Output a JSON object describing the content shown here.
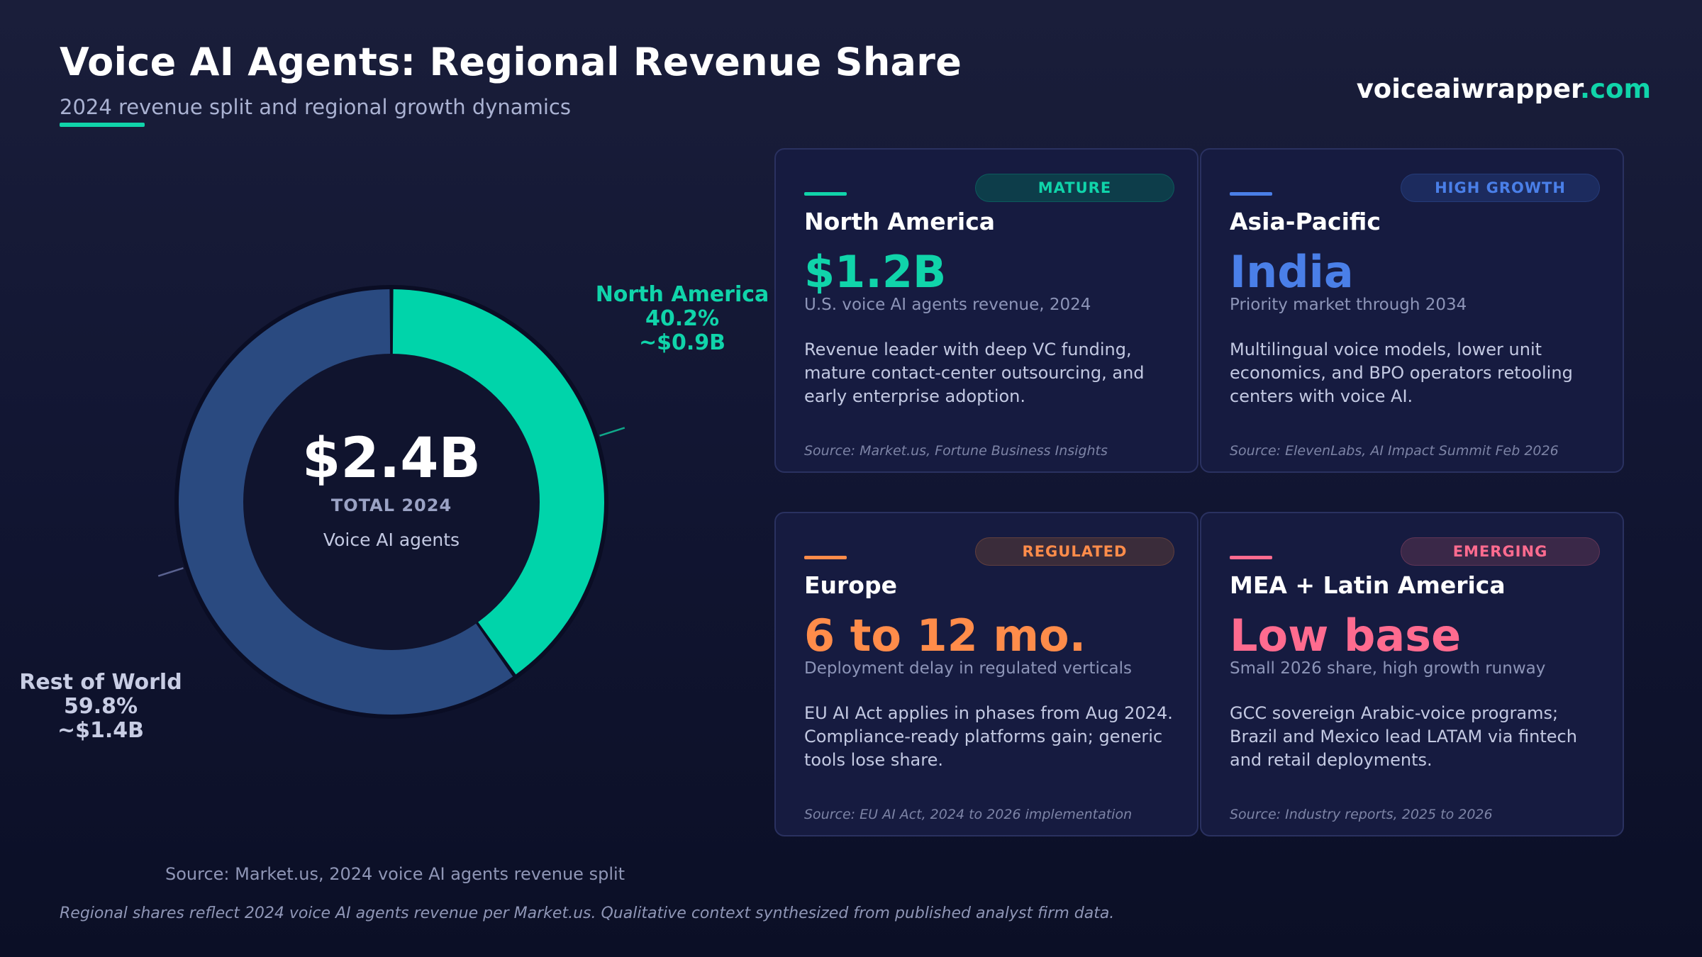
{
  "header": {
    "title": "Voice AI Agents: Regional Revenue Share",
    "subtitle": "2024 revenue split and regional growth dynamics",
    "brand_name": "voiceaiwrapper",
    "brand_domain": ".com"
  },
  "colors": {
    "accent": "#10d4aa",
    "north_america": "#00d4aa",
    "rest_of_world": "#2a4a80",
    "asia_pacific": "#4a7fe8",
    "europe": "#ff8c4a",
    "mea_latam": "#ff6b8f"
  },
  "chart_data": {
    "type": "pie",
    "style": "donut",
    "categories": [
      "North America",
      "Rest of World"
    ],
    "values": [
      40.2,
      59.8
    ],
    "value_unit": "%",
    "amount_labels": [
      "~$0.9B",
      "~$1.4B"
    ],
    "percent_labels": [
      "40.2%",
      "59.8%"
    ],
    "colors": [
      "#00d4aa",
      "#2a4a80"
    ],
    "center": {
      "total": "$2.4B",
      "label": "TOTAL 2024",
      "sublabel": "Voice AI agents"
    },
    "source": "Source: Market.us, 2024 voice AI agents revenue split"
  },
  "cards": [
    {
      "tag": "MATURE",
      "region": "North America",
      "stat": "$1.2B",
      "stat_sub": "U.S. voice AI agents revenue, 2024",
      "description": "Revenue leader with deep VC funding, mature contact-center outsourcing, and early enterprise adoption.",
      "source": "Source: Market.us, Fortune Business Insights",
      "color": "#10d4aa",
      "tag_bg": "#0d3d4a"
    },
    {
      "tag": "HIGH GROWTH",
      "region": "Asia-Pacific",
      "stat": "India",
      "stat_sub": "Priority market through 2034",
      "description": "Multilingual voice models, lower unit economics, and BPO operators retooling centers with voice AI.",
      "source": "Source: ElevenLabs, AI Impact Summit Feb 2026",
      "color": "#4a7fe8",
      "tag_bg": "#1c2b5e"
    },
    {
      "tag": "REGULATED",
      "region": "Europe",
      "stat": "6 to 12 mo.",
      "stat_sub": "Deployment delay in regulated verticals",
      "description": "EU AI Act applies in phases from Aug 2024. Compliance-ready platforms gain; generic tools lose share.",
      "source": "Source: EU AI Act, 2024 to 2026 implementation",
      "color": "#ff8c4a",
      "tag_bg": "#3a2c3a"
    },
    {
      "tag": "EMERGING",
      "region": "MEA + Latin America",
      "stat": "Low base",
      "stat_sub": "Small 2026 share, high growth runway",
      "description": "GCC sovereign Arabic-voice programs; Brazil and Mexico lead LATAM via fintech and retail deployments.",
      "source": "Source: Industry reports, 2025 to 2026",
      "color": "#ff6b8f",
      "tag_bg": "#3a2848"
    }
  ],
  "footnote": "Regional shares reflect 2024 voice AI agents revenue per Market.us. Qualitative context synthesized from published analyst firm data."
}
